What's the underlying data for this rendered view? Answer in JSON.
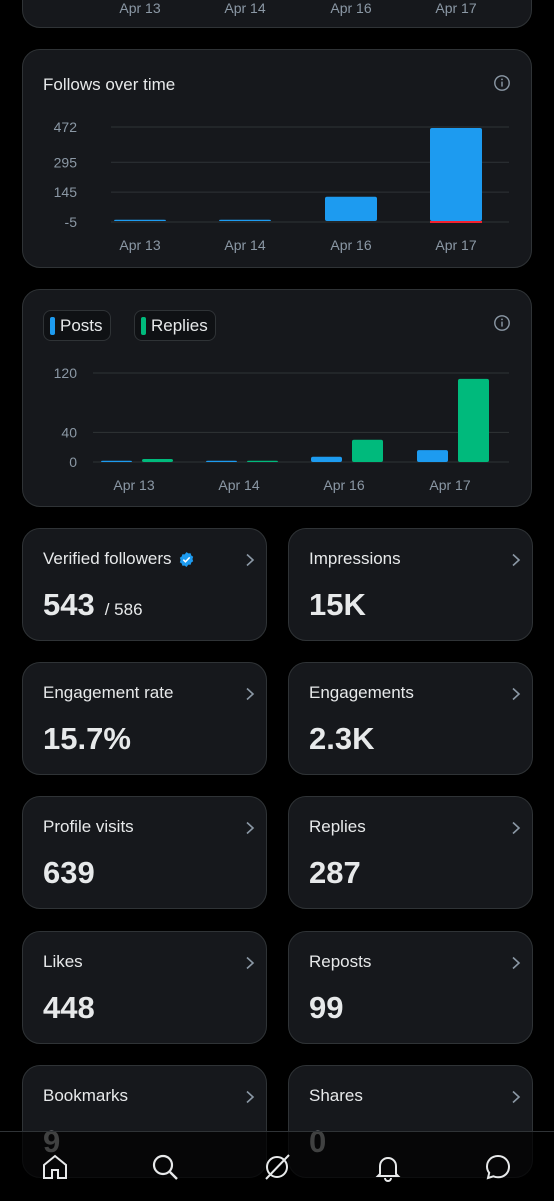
{
  "top_chart": {
    "x_labels": [
      "Apr 13",
      "Apr 14",
      "Apr 16",
      "Apr 17"
    ]
  },
  "follows_chart": {
    "title": "Follows over time",
    "chart_data": {
      "type": "bar",
      "title": "Follows over time",
      "categories": [
        "Apr 13",
        "Apr 14",
        "Apr 16",
        "Apr 17"
      ],
      "y_ticks": [
        472,
        295,
        145,
        -5
      ],
      "ylim": [
        -5,
        472
      ],
      "series": [
        {
          "values": [
            1,
            0,
            122,
            467
          ],
          "color": "#1d9bf0"
        },
        {
          "values": [
            0,
            0,
            0,
            -3
          ],
          "color": "#f4212e"
        }
      ]
    }
  },
  "activity_chart": {
    "legend": [
      {
        "label": "Posts",
        "color": "#1d9bf0"
      },
      {
        "label": "Replies",
        "color": "#00ba7c"
      }
    ],
    "chart_data": {
      "type": "bar",
      "categories": [
        "Apr 13",
        "Apr 14",
        "Apr 16",
        "Apr 17"
      ],
      "y_ticks": [
        120,
        40,
        0
      ],
      "ylim": [
        0,
        120
      ],
      "legend_position": "top-left",
      "series": [
        {
          "name": "Posts",
          "values": [
            1,
            1,
            7,
            16
          ],
          "color": "#1d9bf0"
        },
        {
          "name": "Replies",
          "values": [
            4,
            1,
            30,
            112
          ],
          "color": "#00ba7c"
        }
      ]
    }
  },
  "stats": {
    "verified_followers": {
      "label": "Verified followers",
      "value": "543",
      "sub": "/ 586"
    },
    "impressions": {
      "label": "Impressions",
      "value": "15K"
    },
    "engagement_rate": {
      "label": "Engagement rate",
      "value": "15.7%"
    },
    "engagements": {
      "label": "Engagements",
      "value": "2.3K"
    },
    "profile_visits": {
      "label": "Profile visits",
      "value": "639"
    },
    "replies": {
      "label": "Replies",
      "value": "287"
    },
    "likes": {
      "label": "Likes",
      "value": "448"
    },
    "reposts": {
      "label": "Reposts",
      "value": "99"
    },
    "bookmarks": {
      "label": "Bookmarks",
      "value": "9"
    },
    "shares": {
      "label": "Shares",
      "value": "0"
    }
  },
  "colors": {
    "background": "#000000",
    "card": "#16181c",
    "border": "#2f3336",
    "posts": "#1d9bf0",
    "replies": "#00ba7c",
    "negative": "#f4212e",
    "verified": "#1d9bf0"
  },
  "nav": {
    "icons": [
      "home-icon",
      "search-icon",
      "grok-icon",
      "notifications-icon",
      "messages-icon"
    ]
  }
}
